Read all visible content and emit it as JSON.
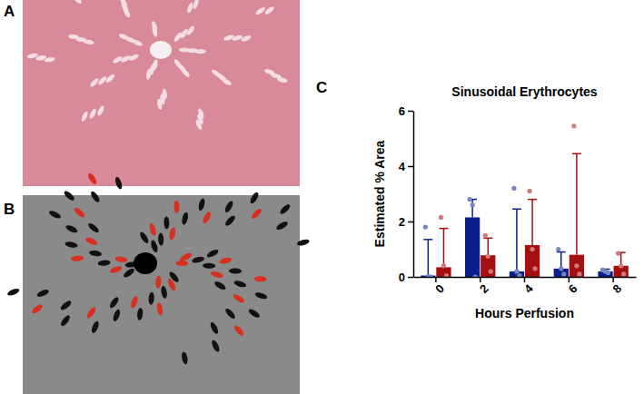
{
  "panel_labels": [
    "A",
    "B",
    "C"
  ],
  "chart_data": {
    "type": "bar",
    "title": "Sinusoidal Erythrocytes",
    "x_label": "Hours Perfusion",
    "y_label": "Estimated % Area",
    "categories": [
      "0",
      "2",
      "4",
      "6",
      "8"
    ],
    "ylim": [
      0,
      6
    ],
    "yticks": [
      0,
      2,
      4,
      6
    ],
    "series": [
      {
        "color": "#0b1f8c",
        "values": [
          0.05,
          2.15,
          0.2,
          0.3,
          0.2
        ],
        "errors": [
          1.3,
          0.65,
          2.25,
          0.6,
          0.08
        ],
        "points": [
          [
            1.8,
            0.02,
            0.0
          ],
          [
            2.8,
            2.6,
            0.0
          ],
          [
            3.2,
            0.2,
            0.05
          ],
          [
            1.0,
            0.3,
            0.1
          ],
          [
            0.25,
            0.2,
            0.15
          ]
        ]
      },
      {
        "color": "#a50f0f",
        "values": [
          0.35,
          0.78,
          1.15,
          0.8,
          0.4
        ],
        "errors": [
          1.4,
          0.62,
          1.65,
          3.65,
          0.48
        ],
        "points": [
          [
            2.15,
            0.4,
            0.05
          ],
          [
            1.5,
            0.75,
            0.2
          ],
          [
            3.1,
            1.0,
            0.3
          ],
          [
            5.45,
            0.4,
            0.1
          ],
          [
            0.85,
            0.4,
            0.1
          ]
        ]
      }
    ]
  }
}
